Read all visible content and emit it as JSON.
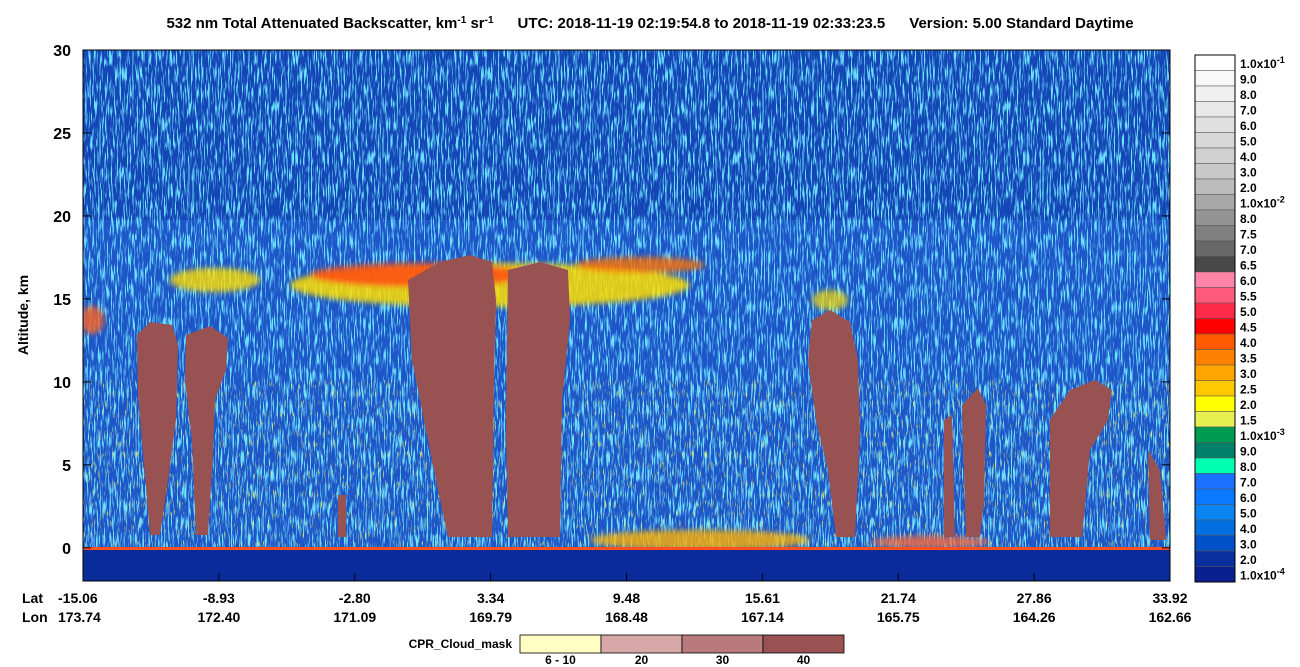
{
  "chart_data": {
    "type": "curtain",
    "title_parts": [
      "532 nm Total Attenuated Backscatter, km",
      "-1",
      " sr",
      "-1"
    ],
    "utc": "UTC:  2018-11-19 02:19:54.8  to  2018-11-19 02:33:23.5",
    "version": "Version: 5.00  Standard  Daytime",
    "ylabel": "Altitude, km",
    "ylim": [
      -2,
      30
    ],
    "yticks": [
      0,
      5,
      10,
      15,
      20,
      25,
      30
    ],
    "x_row_labels": [
      "Lat",
      "Lon"
    ],
    "lat_labels": [
      "-15.06",
      "-8.93",
      "-2.80",
      "3.34",
      "9.48",
      "15.61",
      "21.74",
      "27.86",
      "33.92"
    ],
    "lon_labels": [
      "173.74",
      "172.40",
      "171.09",
      "169.79",
      "168.48",
      "167.14",
      "165.75",
      "164.26",
      "162.66"
    ],
    "colorbar": {
      "labels": [
        [
          "1.0x10",
          "-1"
        ],
        "9.0",
        "8.0",
        "7.0",
        "6.0",
        "5.0",
        "4.0",
        "3.0",
        "2.0",
        [
          "1.0x10",
          "-2"
        ],
        "8.0",
        "7.5",
        "7.0",
        "6.5",
        "6.0",
        "5.5",
        "5.0",
        "4.5",
        "4.0",
        "3.5",
        "3.0",
        "2.5",
        "2.0",
        "1.5",
        [
          "1.0x10",
          "-3"
        ],
        "9.0",
        "8.0",
        "7.0",
        "6.0",
        "5.0",
        "4.0",
        "3.0",
        "2.0",
        [
          "1.0x10",
          "-4"
        ]
      ],
      "colors": [
        "#ffffff",
        "#f8f8f8",
        "#f0f0f0",
        "#e8e8e8",
        "#e0e0e0",
        "#d8d8d8",
        "#d0d0d0",
        "#c8c8c8",
        "#bcbcbc",
        "#a8a8a8",
        "#949494",
        "#808080",
        "#686868",
        "#484848",
        "#ff85a8",
        "#ff5a7a",
        "#ff2a4a",
        "#ff0000",
        "#ff5a00",
        "#ff8000",
        "#ffa500",
        "#ffc800",
        "#ffff00",
        "#e6f050",
        "#009a50",
        "#00806a",
        "#00ffb0",
        "#1a70ff",
        "#0a78ff",
        "#0a84f0",
        "#0070e0",
        "#0050c8",
        "#0a30a0",
        "#0a2090"
      ]
    },
    "cloud_mask": {
      "title": "CPR_Cloud_mask",
      "labels": [
        "6 - 10",
        "20",
        "30",
        "40"
      ],
      "colors": [
        "#ffffc4",
        "#d8a8a8",
        "#b87a7a",
        "#985252"
      ]
    }
  }
}
